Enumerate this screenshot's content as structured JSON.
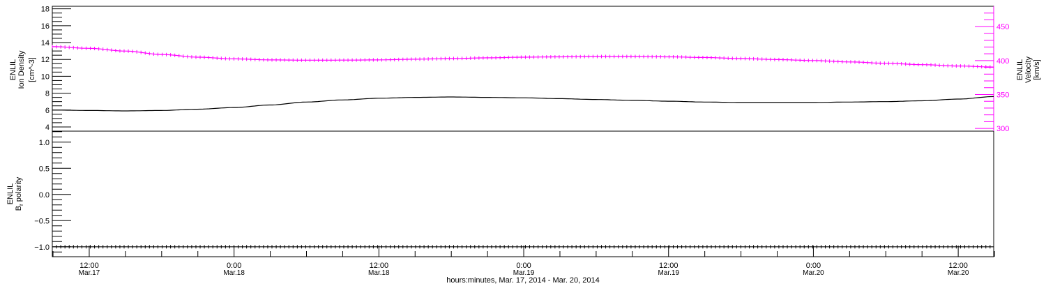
{
  "chart_data": [
    {
      "type": "line",
      "panel": "top",
      "ylabel_left": [
        "ENLIL",
        "Ion Density",
        "[cm^-3]"
      ],
      "ylabel_right": [
        "ENLIL",
        "Velocity",
        "[km/s]"
      ],
      "ylim_left": [
        3.5,
        18.3
      ],
      "ylim_right": [
        296,
        480
      ],
      "yticks_left": [
        4,
        6,
        8,
        10,
        12,
        14,
        16,
        18
      ],
      "yticks_right": [
        300,
        350,
        400,
        450
      ],
      "x_hours": [
        9,
        12,
        15,
        18,
        21,
        24,
        27,
        30,
        33,
        36,
        39,
        42,
        45,
        48,
        51,
        54,
        57,
        60,
        63,
        66,
        69,
        72,
        75,
        78,
        81,
        84,
        87
      ],
      "series": [
        {
          "name": "Ion Density",
          "axis": "left",
          "color": "#000000",
          "values": [
            6.0,
            5.95,
            5.9,
            5.95,
            6.1,
            6.3,
            6.6,
            6.95,
            7.2,
            7.4,
            7.5,
            7.55,
            7.5,
            7.45,
            7.35,
            7.25,
            7.15,
            7.05,
            6.95,
            6.9,
            6.9,
            6.9,
            6.95,
            7.0,
            7.1,
            7.3,
            7.6
          ]
        },
        {
          "name": "Velocity",
          "axis": "right",
          "color": "#ff00ff",
          "values": [
            420.5,
            418,
            414,
            409,
            405,
            402.5,
            401,
            400.5,
            400.6,
            401,
            402,
            403,
            404,
            405,
            405.5,
            406,
            406,
            405.5,
            404.5,
            403,
            401.5,
            400,
            398,
            396,
            394,
            392,
            390.5
          ]
        }
      ]
    },
    {
      "type": "line",
      "panel": "bottom",
      "ylabel_left": [
        "ENLIL",
        "Br polarity"
      ],
      "ylim": [
        -1.19,
        1.21
      ],
      "yticks": [
        "1.0",
        "0.5",
        "0.0",
        "-0.5",
        "-1.0"
      ],
      "x_hours": [
        9,
        87
      ],
      "series": [
        {
          "name": "Br polarity",
          "color": "#000000",
          "values": [
            -1.0,
            -1.0
          ]
        }
      ]
    }
  ],
  "xaxis": {
    "range_hours": [
      8.94,
      86.94
    ],
    "ticks": [
      {
        "h": 12,
        "time": "12:00",
        "date": "Mar.17"
      },
      {
        "h": 24,
        "time": "0:00",
        "date": "Mar.18"
      },
      {
        "h": 36,
        "time": "12:00",
        "date": "Mar.18"
      },
      {
        "h": 48,
        "time": "0:00",
        "date": "Mar.19"
      },
      {
        "h": 60,
        "time": "12:00",
        "date": "Mar.19"
      },
      {
        "h": 72,
        "time": "0:00",
        "date": "Mar.20"
      },
      {
        "h": 84,
        "time": "12:00",
        "date": "Mar.20"
      }
    ],
    "label": "hours:minutes, Mar. 17, 2014 - Mar. 20, 2014"
  },
  "labels": {
    "density_1": "ENLIL",
    "density_2": "Ion Density",
    "density_3": "[cm",
    "density_exp": "-3",
    "density_4": "]",
    "vel_1": "ENLIL",
    "vel_2": "Velocity",
    "vel_3": "[km/s]",
    "pol_1": "ENLIL",
    "pol_2": "B",
    "pol_sub": "r",
    "pol_3": " polarity"
  },
  "colors": {
    "density": "#000000",
    "velocity": "#ff00ff",
    "polarity": "#000000"
  }
}
